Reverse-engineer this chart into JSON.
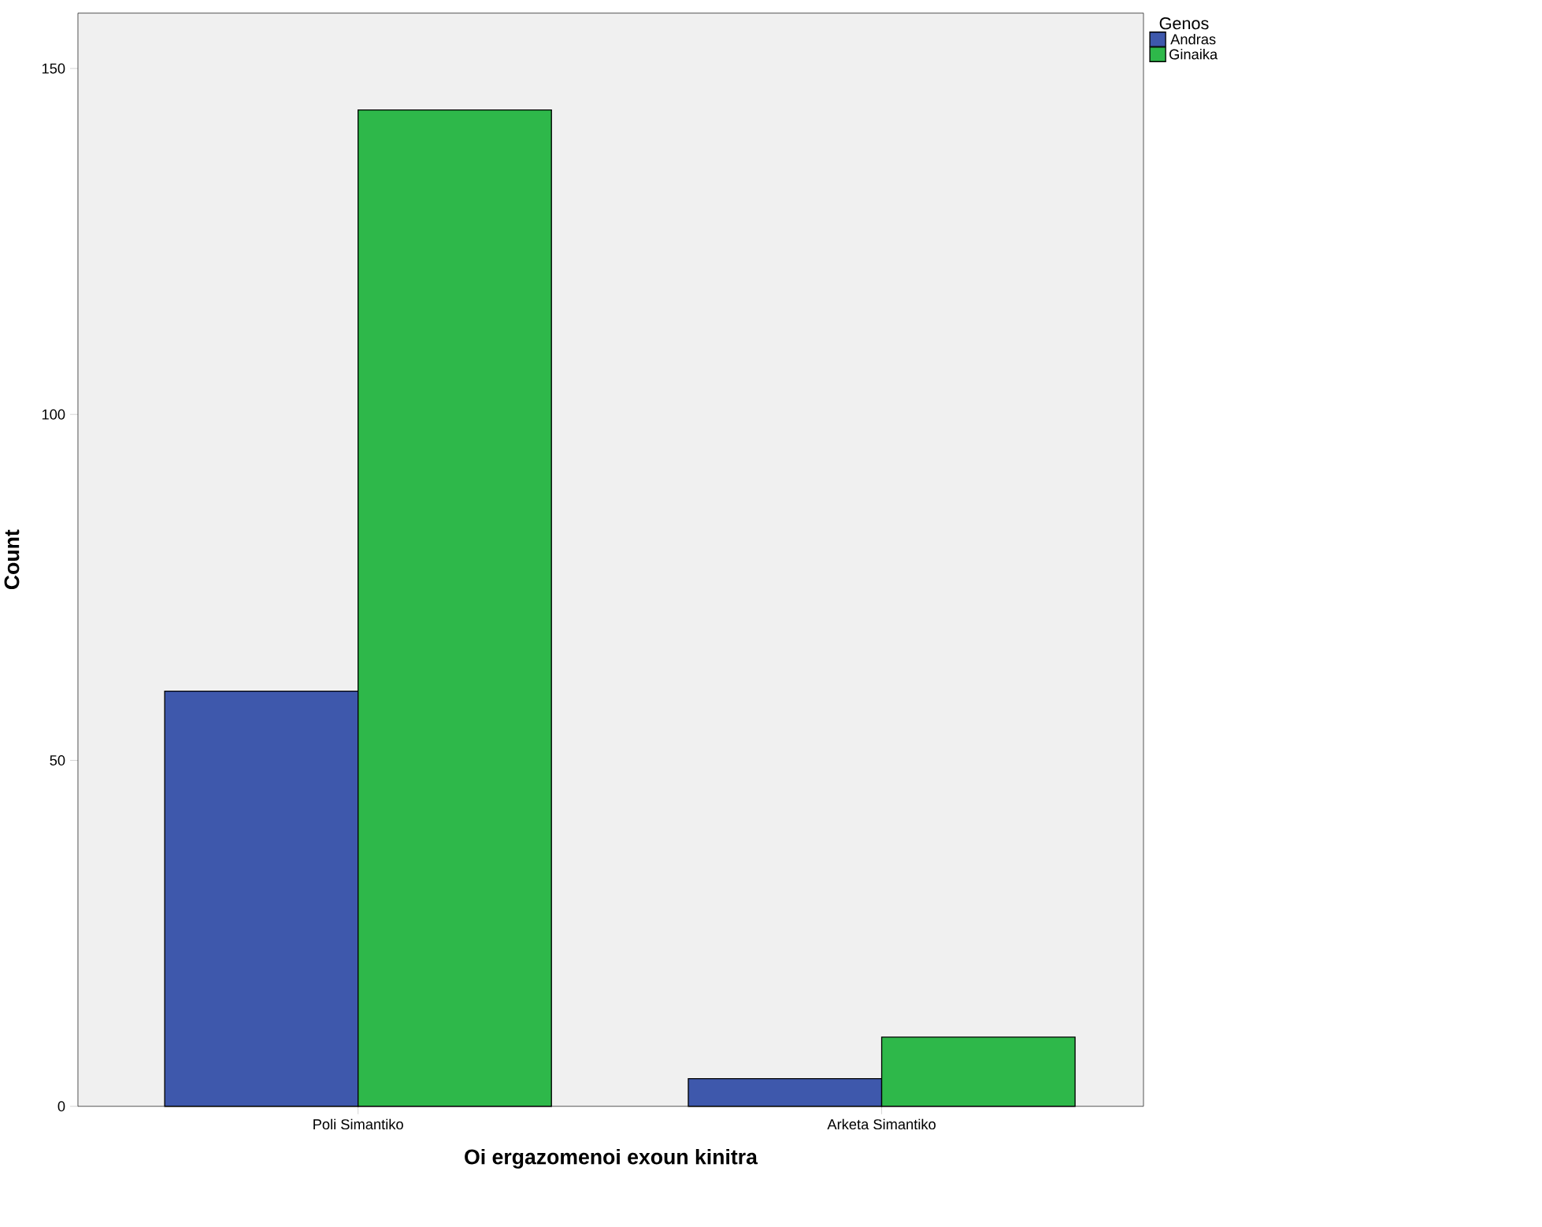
{
  "chart_data": {
    "type": "bar",
    "xlabel": "Oi ergazomenoi exoun kinitra",
    "ylabel": "Count",
    "legend_title": "Genos",
    "categories": [
      "Poli Simantiko",
      "Arketa Simantiko"
    ],
    "series": [
      {
        "name": "Andras",
        "color": "#3e58ac",
        "values": [
          60,
          4
        ]
      },
      {
        "name": "Ginaika",
        "color": "#2eb84a",
        "values": [
          144,
          10
        ]
      }
    ],
    "ylim": [
      0,
      158
    ],
    "yticks": [
      0,
      50,
      100,
      150
    ],
    "legend": "top right",
    "grid": false
  }
}
